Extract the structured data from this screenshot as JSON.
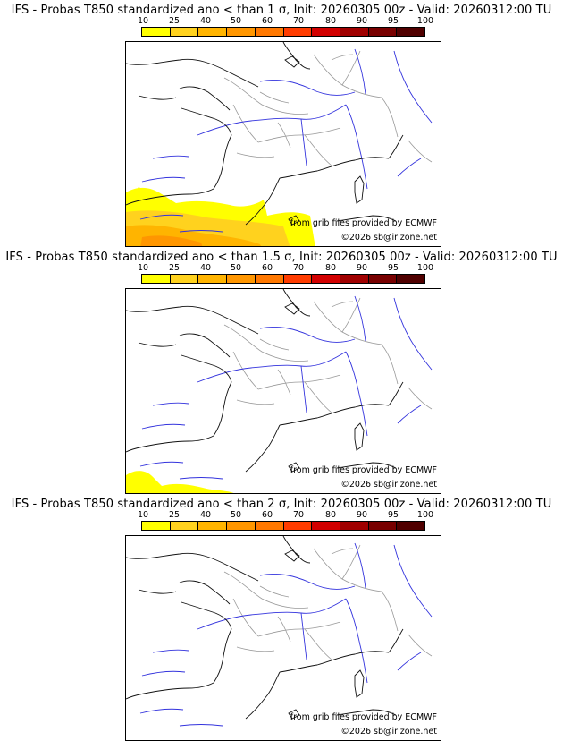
{
  "colorbar": {
    "labels": [
      "10",
      "25",
      "40",
      "50",
      "60",
      "70",
      "80",
      "90",
      "95",
      "100"
    ],
    "colors": [
      "#ffff00",
      "#ffd21e",
      "#ffb400",
      "#ff9600",
      "#ff7800",
      "#ff3c00",
      "#d20000",
      "#a00000",
      "#780000",
      "#500000"
    ]
  },
  "palette": {
    "coast": "#111111",
    "rivers": "#3333dd",
    "borders": "#999999"
  },
  "panels": [
    {
      "title": "IFS - Probas T850  standardized ano < than 1 σ, Init: 20260305 00z - Valid: 20260312:00 TU",
      "credit_ecmwf": "from grib files provided by ECMWF",
      "credit_site": "©2026 sb@irizone.net",
      "signal": "moderate"
    },
    {
      "title": "IFS - Probas T850  standardized ano < than 1.5 σ, Init: 20260305 00z - Valid: 20260312:00 TU",
      "credit_ecmwf": "from grib files provided by ECMWF",
      "credit_site": "©2026 sb@irizone.net",
      "signal": "weak"
    },
    {
      "title": "IFS - Probas T850  standardized ano < than 2 σ, Init: 20260305 00z - Valid: 20260312:00 TU",
      "credit_ecmwf": "from grib files provided by ECMWF",
      "credit_site": "©2026 sb@irizone.net",
      "signal": "none"
    }
  ]
}
